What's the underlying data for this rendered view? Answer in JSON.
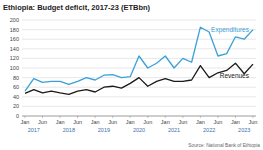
{
  "chart_data": {
    "type": "line",
    "title": "Ethiopia: Budget deficit, 2017-23 (ETBbn)",
    "source": "Source: National Bank of Ethiopia",
    "categories": [
      "Jan",
      null,
      "Jun",
      null,
      "Jan",
      null,
      "Jun",
      null,
      "Jan",
      null,
      "Jun",
      null,
      "Jan",
      null,
      "Jun",
      null,
      "Jan",
      null,
      "Jun",
      null,
      "Jan",
      null,
      "Jun",
      null,
      "Jan",
      null,
      "Jun"
    ],
    "x_group_labels": [
      "2017",
      "2018",
      "2019",
      "2020",
      "2021",
      "2022",
      "2023"
    ],
    "series": [
      {
        "name": "Expenditures",
        "color": "#3aa0d8",
        "values": [
          52,
          78,
          70,
          72,
          72,
          66,
          72,
          80,
          75,
          85,
          86,
          80,
          82,
          125,
          100,
          110,
          125,
          100,
          120,
          112,
          185,
          175,
          125,
          130,
          165,
          160,
          180
        ]
      },
      {
        "name": "Revenues",
        "color": "#1a1a1a",
        "values": [
          47,
          55,
          48,
          52,
          48,
          45,
          52,
          55,
          50,
          60,
          62,
          58,
          68,
          80,
          62,
          72,
          78,
          72,
          72,
          75,
          105,
          80,
          90,
          95,
          110,
          88,
          108
        ]
      }
    ],
    "ylim": [
      0,
      200
    ],
    "yticks": [
      0,
      20,
      40,
      60,
      80,
      100,
      120,
      140,
      160,
      180,
      200
    ],
    "grid": true
  }
}
